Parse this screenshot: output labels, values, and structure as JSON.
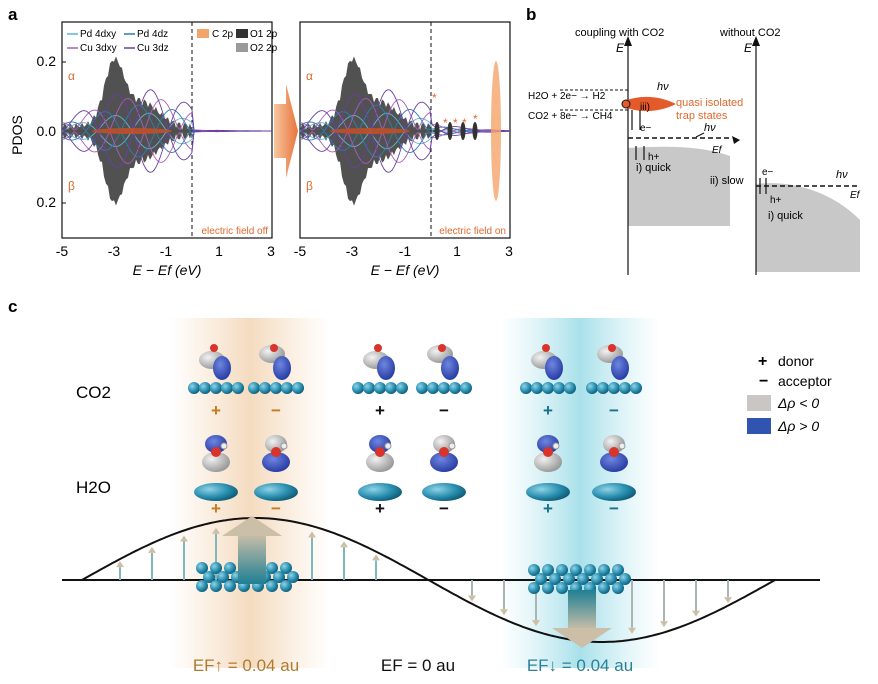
{
  "panel_a": {
    "letter": "a",
    "ylabel": "PDOS",
    "y_ticks": [
      "0.2",
      "0.0",
      "0.2"
    ],
    "x_ticks": [
      "-5",
      "-3",
      "-1",
      "1",
      "3"
    ],
    "xlabel_left": "E − Ef (eV)",
    "xlabel_right": "E − Ef (eV)",
    "alpha": "α",
    "beta": "β",
    "legend": [
      "Pd 4dxy",
      "Pd 4dz",
      "Cu 3dxy",
      "Cu 3dz",
      "C 2p",
      "O1 2p",
      "O2 2p"
    ],
    "label_off": "electric field off",
    "label_on": "electric field on",
    "star": "*",
    "colors": {
      "pd_dxy": "#5fb3d9",
      "pd_dz": "#2b7fb0",
      "cu_dxy": "#a65fb8",
      "cu_dz": "#6a3fa0",
      "c2p": "#f4a46a",
      "o1": "#333333",
      "o2": "#9a9a9a"
    }
  },
  "panel_b": {
    "letter": "b",
    "title_left": "coupling with CO2",
    "title_right": "without CO2",
    "axis_e": "E",
    "reaction_1": "H2O + 2e− → H2",
    "reaction_2": "CO2 + 8e− → CH4",
    "step_iii": "iii)",
    "hv": "hν",
    "quasi_1": "quasi isolated",
    "quasi_2": "trap states",
    "electron": "e−",
    "hole": "h+",
    "quick": "i) quick",
    "slow": "ii) slow",
    "ef": "Ef"
  },
  "panel_c": {
    "letter": "c",
    "row_co2": "CO2",
    "row_h2o": "H2O",
    "legend_donor_sym": "+",
    "legend_donor": "donor",
    "legend_acceptor_sym": "−",
    "legend_acceptor": "acceptor",
    "legend_neg": "Δρ < 0",
    "legend_pos": "Δρ > 0",
    "signs_co2": [
      "+",
      "−",
      "+",
      "−",
      "+",
      "−"
    ],
    "signs_h2o": [
      "+",
      "−",
      "+",
      "−",
      "+",
      "−"
    ],
    "ef_up": "EF↑ = 0.04 au",
    "ef_zero": "EF = 0 au",
    "ef_down": "EF↓ = 0.04 au"
  }
}
